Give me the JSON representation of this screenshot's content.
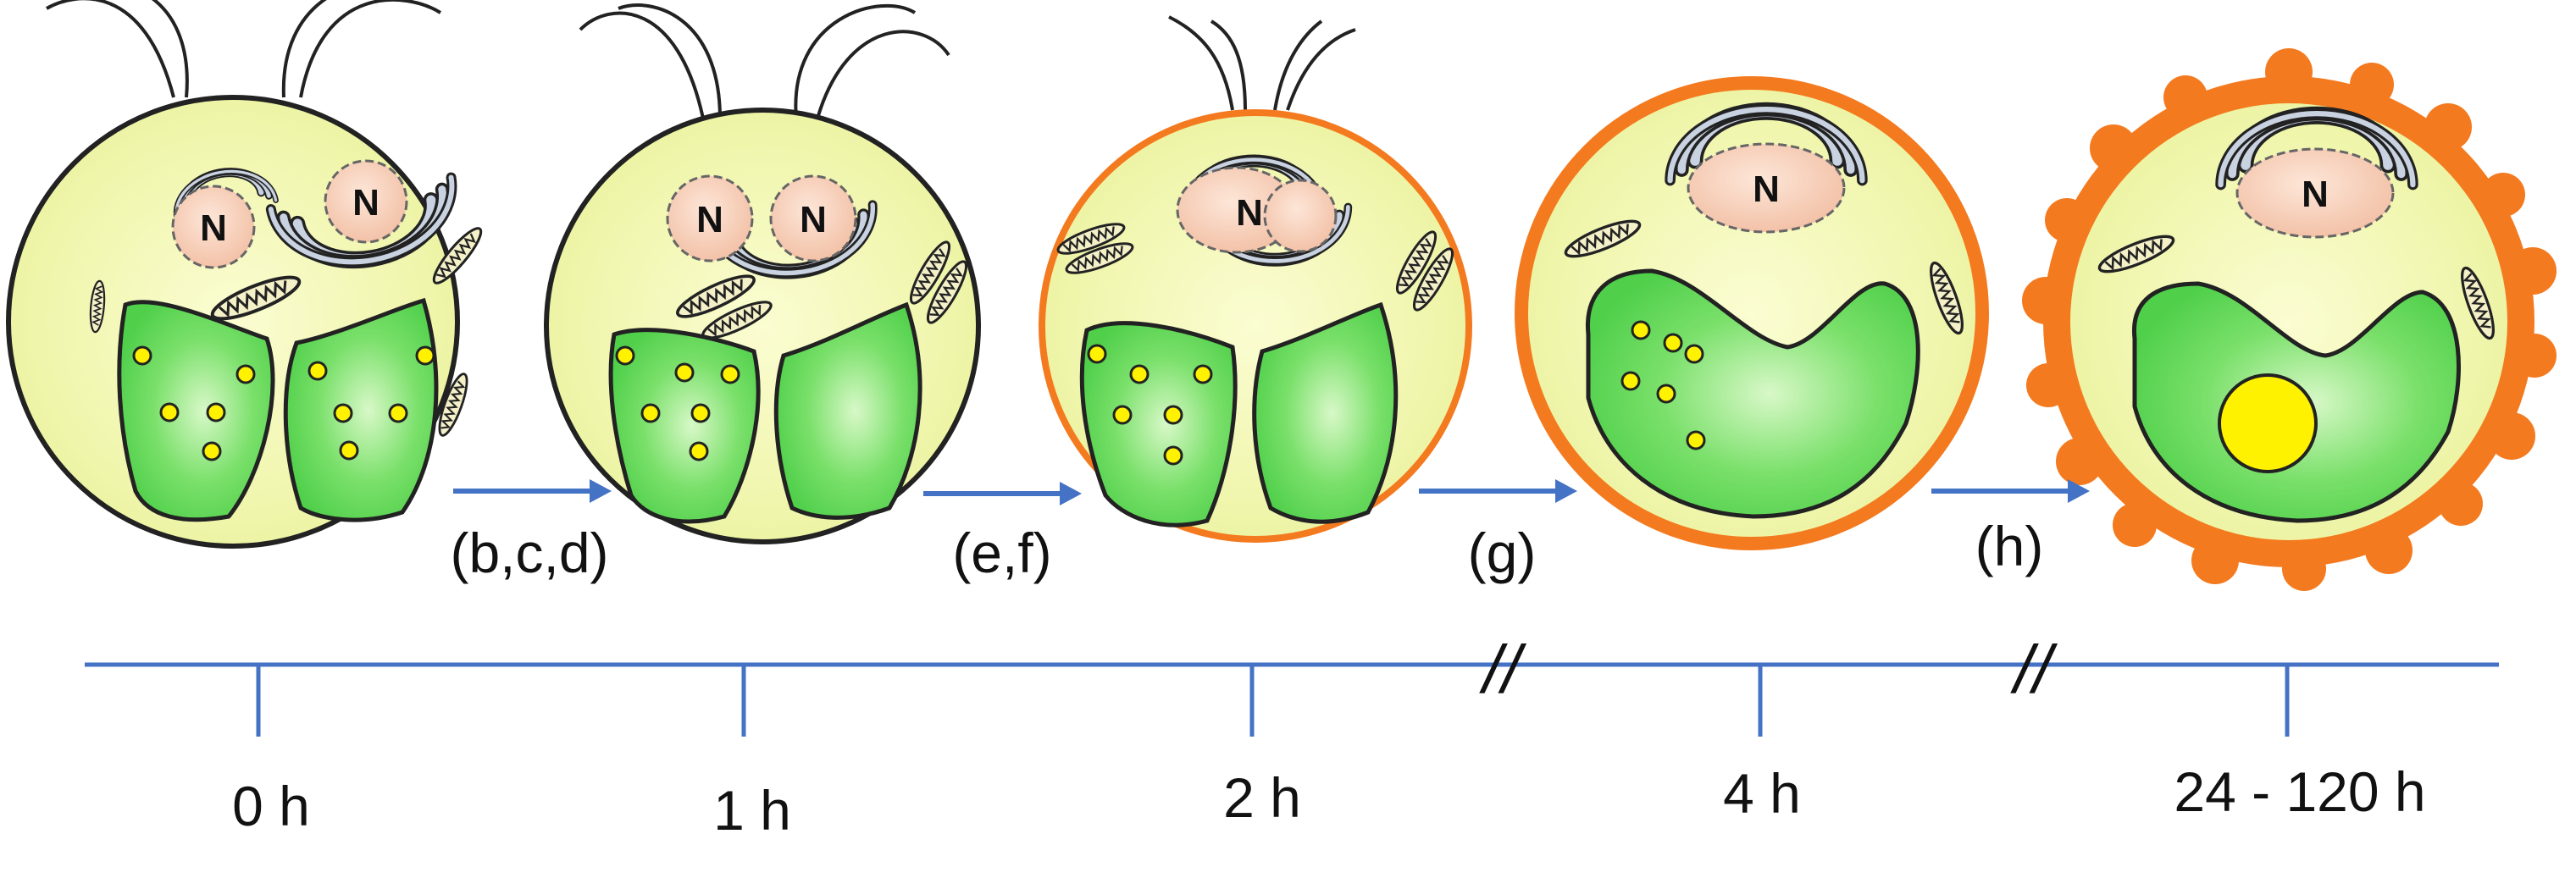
{
  "colors": {
    "cytoplasm": "#f6f9b4",
    "cell_outline": "#222222",
    "chloroplast": "#5fd65a",
    "chloroplast_light": "#c8f5b6",
    "nucleus": "#f6c9b0",
    "starch_small": "#fff200",
    "cell_wall": "#f47a1f",
    "arrow": "#4472c4",
    "timeline": "#4472c4"
  },
  "cells": [
    {
      "stage": "0 h",
      "nucleus_labels": [
        "N",
        "N"
      ],
      "flagella": true,
      "wall": "none",
      "starch_grains": 10
    },
    {
      "stage": "1 h",
      "nucleus_labels": [
        "N",
        "N"
      ],
      "flagella": true,
      "wall": "none",
      "starch_grains": 6
    },
    {
      "stage": "2 h",
      "nucleus_labels": [
        "N"
      ],
      "flagella": true,
      "wall": "thin",
      "starch_grains": 6
    },
    {
      "stage": "4 h",
      "nucleus_labels": [
        "N"
      ],
      "flagella": false,
      "wall": "thick",
      "starch_grains": 6
    },
    {
      "stage": "24 - 120 h",
      "nucleus_labels": [
        "N"
      ],
      "flagella": false,
      "wall": "bumpy",
      "starch_grains": 1
    }
  ],
  "steps": [
    "(b,c,d)",
    "(e,f)",
    "(g)",
    "(h)"
  ],
  "timeline": {
    "ticks": [
      "0 h",
      "1 h",
      "2 h",
      "4 h",
      "24 - 120 h"
    ],
    "breaks": [
      "//",
      "//"
    ]
  }
}
